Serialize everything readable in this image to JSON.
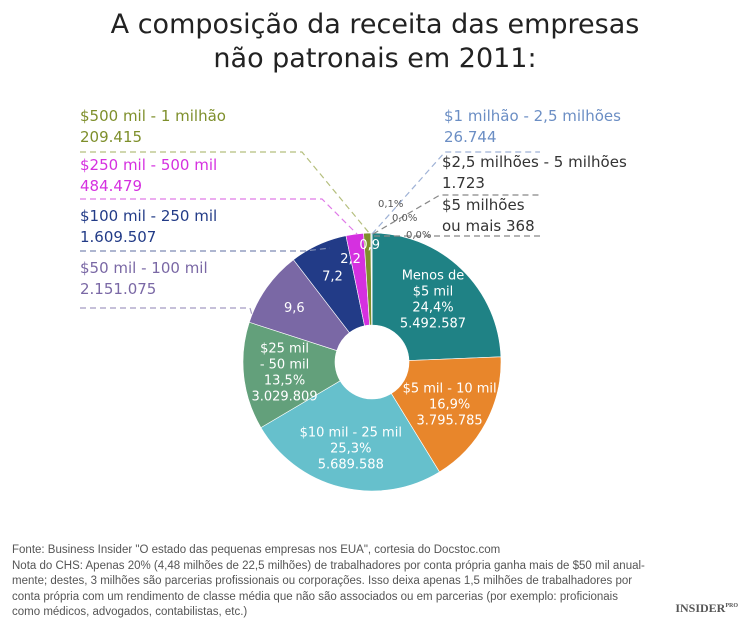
{
  "chart_data": {
    "type": "pie",
    "donut": true,
    "title_lines": [
      "A composição da receita das empresas",
      "não patronais em 2011:"
    ],
    "slices": [
      {
        "category": "Menos de $5 mil",
        "percent": 24.4,
        "count": "5.492.587",
        "color": "#1f8285",
        "inner_label": [
          "Menos de",
          "$5 mil",
          "24,4%",
          "5.492.587"
        ]
      },
      {
        "category": "$5 mil - 10 mil",
        "percent": 16.9,
        "count": "3.795.785",
        "color": "#e8862b",
        "inner_label": [
          "$5 mil - 10 mil",
          "16,9%",
          "3.795.785"
        ]
      },
      {
        "category": "$10 mil - 25 mil",
        "percent": 25.3,
        "count": "5.689.588",
        "color": "#66c0cc",
        "inner_label": [
          "$10 mil - 25 mil",
          "25,3%",
          "5.689.588"
        ]
      },
      {
        "category": "$25 mil - 50 mil",
        "percent": 13.5,
        "count": "3.029.809",
        "color": "#63a07b",
        "inner_label": [
          "$25 mil",
          "- 50 mil",
          "13,5%",
          "3.029.809"
        ]
      },
      {
        "category": "$50 mil - 100 mil",
        "percent": 9.6,
        "count": "2.151.075",
        "color": "#7a68a5",
        "inner_label": [
          "9,6"
        ]
      },
      {
        "category": "$100 mil - 250 mil",
        "percent": 7.2,
        "count": "1.609.507",
        "color": "#223b87",
        "inner_label": [
          "7,2"
        ]
      },
      {
        "category": "$250 mil - 500 mil",
        "percent": 2.2,
        "count": "484.479",
        "color": "#d530e0",
        "inner_label": [
          "2,2"
        ]
      },
      {
        "category": "$500 mil - 1 milhão",
        "percent": 0.9,
        "count": "209.415",
        "color": "#7e8f2b",
        "inner_label": [
          "0,9"
        ]
      },
      {
        "category": "$1 milhão - 2,5 milhões",
        "percent": 0.1,
        "count": "26.744",
        "color": "#6b8ec4",
        "inner_label": [],
        "outer_label": "0,1%"
      },
      {
        "category": "$2,5 milhões - 5 milhões",
        "percent": 0.0,
        "count": "1.723",
        "color": "#444444",
        "inner_label": [],
        "outer_label": "0,0%"
      },
      {
        "category": "$5 milhões ou mais",
        "percent": 0.0,
        "count": "368",
        "color": "#444444",
        "inner_label": [],
        "outer_label": "0,0%"
      }
    ]
  },
  "callouts": {
    "c500k": {
      "l1": "$500 mil - 1 milhão",
      "l2": "209.415",
      "color": "#7e8f2b"
    },
    "c250k": {
      "l1": "$250 mil - 500 mil",
      "l2": "484.479",
      "color": "#d530e0"
    },
    "c100k": {
      "l1": "$100 mil - 250 mil",
      "l2": "1.609.507",
      "color": "#223b87"
    },
    "c50k": {
      "l1": "$50 mil - 100 mil",
      "l2": "2.151.075",
      "color": "#7a68a5"
    },
    "c1m": {
      "l1": "$1 milhão - 2,5 milhões",
      "l2": "26.744",
      "color": "#6b8ec4"
    },
    "c25m": {
      "l1": "$2,5 milhões - 5 milhões",
      "l2": "1.723",
      "color": "#333333"
    },
    "c5m": {
      "l1": "$5 milhões",
      "l2": "ou mais 368",
      "color": "#333333"
    }
  },
  "footer": {
    "source": "Fonte: Business Insider \"O estado das pequenas empresas nos EUA\", cortesia do Docstoc.com",
    "note1": "Nota do CHS: Apenas 20% (4,48 milhões de 22,5 milhões) de trabalhadores por conta própria ganha mais de $50 mil anual-",
    "note2": "mente; destes, 3 milhões são parcerias profissionais ou corporações. Isso deixa apenas 1,5 milhões de trabalhadores por",
    "note3": "conta própria com um rendimento de classe média que não são associados ou em parcerias (por exemplo: proficionais",
    "note4": "como médicos, advogados, contabilistas, etc.)"
  },
  "logo": {
    "main": "INSIDER",
    "sup": "PRO"
  }
}
